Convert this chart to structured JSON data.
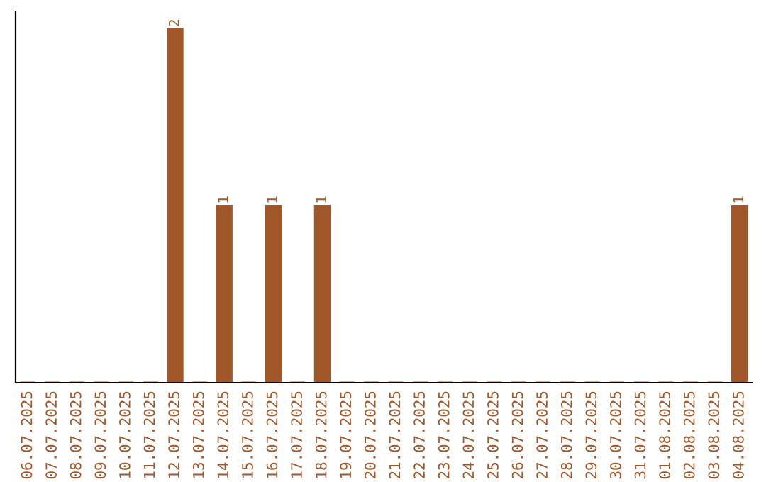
{
  "chart_data": {
    "type": "bar",
    "categories": [
      "06.07.2025",
      "07.07.2025",
      "08.07.2025",
      "09.07.2025",
      "10.07.2025",
      "11.07.2025",
      "12.07.2025",
      "13.07.2025",
      "14.07.2025",
      "15.07.2025",
      "16.07.2025",
      "17.07.2025",
      "18.07.2025",
      "19.07.2025",
      "20.07.2025",
      "21.07.2025",
      "22.07.2025",
      "23.07.2025",
      "24.07.2025",
      "25.07.2025",
      "26.07.2025",
      "27.07.2025",
      "28.07.2025",
      "29.07.2025",
      "30.07.2025",
      "31.07.2025",
      "01.08.2025",
      "02.08.2025",
      "03.08.2025",
      "04.08.2025"
    ],
    "values": [
      0,
      0,
      0,
      0,
      0,
      0,
      2,
      0,
      1,
      0,
      1,
      0,
      1,
      0,
      0,
      0,
      0,
      0,
      0,
      0,
      0,
      0,
      0,
      0,
      0,
      0,
      0,
      0,
      0,
      1
    ],
    "value_labels": [
      null,
      null,
      null,
      null,
      null,
      null,
      "2",
      null,
      "1",
      null,
      "1",
      null,
      "1",
      null,
      null,
      null,
      null,
      null,
      null,
      null,
      null,
      null,
      null,
      null,
      null,
      null,
      null,
      null,
      null,
      "1"
    ],
    "color": "#a0582a",
    "ylim": [
      0,
      2.1
    ],
    "tick_labels": "x",
    "grid": false,
    "legend": false
  }
}
